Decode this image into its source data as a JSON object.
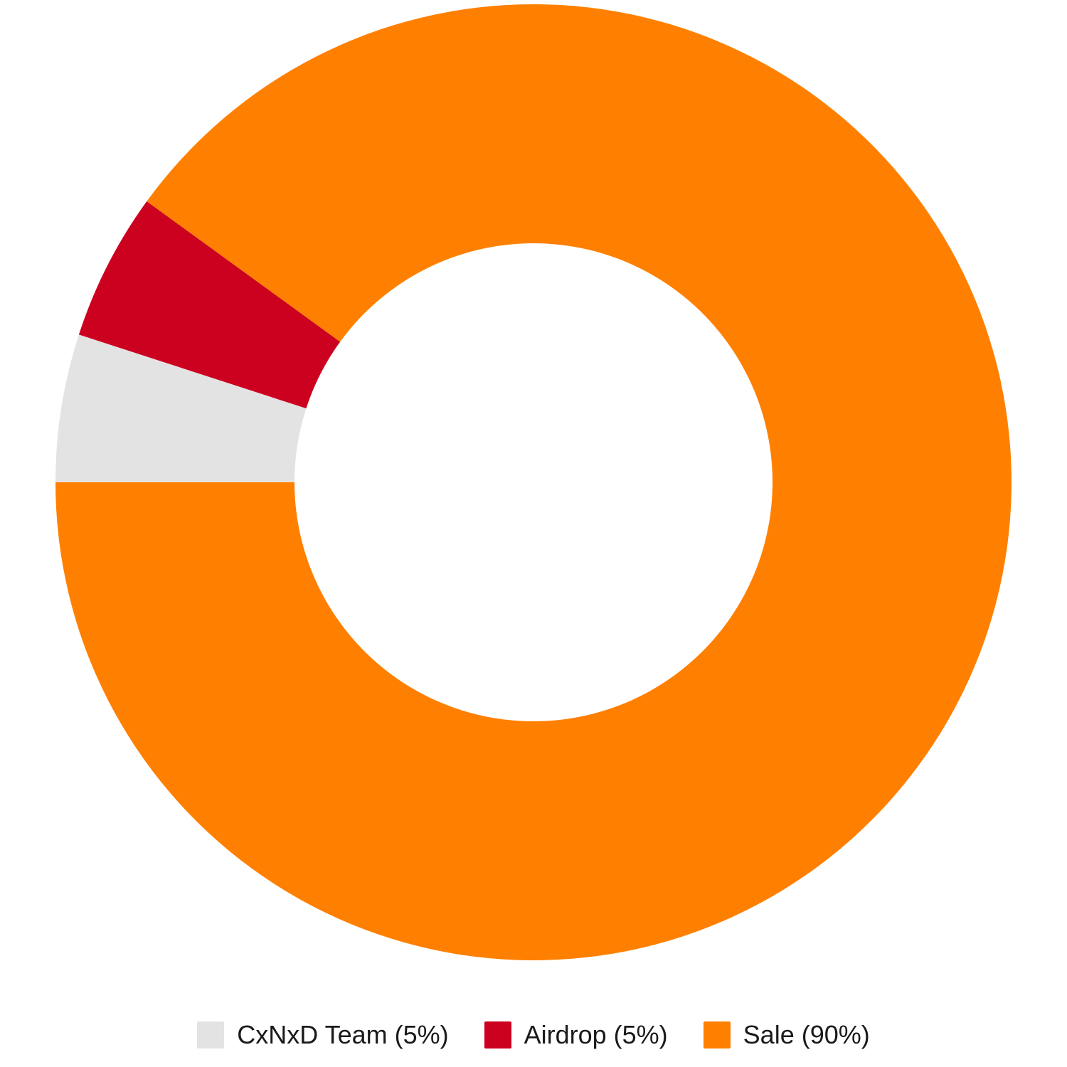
{
  "chart_data": {
    "type": "pie",
    "style": "donut",
    "categories": [
      "CxNxD Team",
      "Airdrop",
      "Sale"
    ],
    "values": [
      5,
      5,
      90
    ],
    "unit": "%",
    "colors": [
      "#e3e3e3",
      "#cc001f",
      "#ff8000"
    ],
    "legend": {
      "placement": "bottom",
      "labels": [
        "CxNxD Team (5%)",
        "Airdrop (5%)",
        "Sale (90%)"
      ]
    }
  }
}
